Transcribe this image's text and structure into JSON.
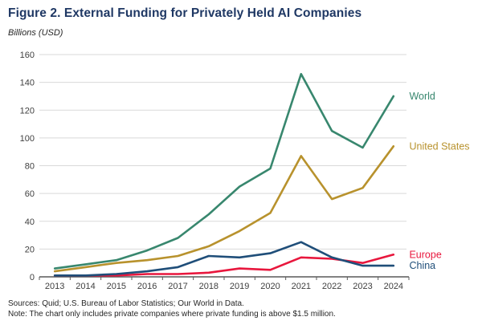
{
  "header": {
    "title": "Figure 2. External Funding for Privately Held AI Companies",
    "subtitle": "Billions (USD)"
  },
  "chart_data": {
    "type": "line",
    "title": "Figure 2. External Funding for Privately Held AI Companies",
    "subtitle": "Billions (USD)",
    "xlabel": "",
    "ylabel": "Billions (USD)",
    "categories": [
      "2013",
      "2014",
      "2015",
      "2016",
      "2017",
      "2018",
      "2019",
      "2020",
      "2021",
      "2022",
      "2023",
      "2024"
    ],
    "series": [
      {
        "name": "World",
        "color": "#38876e",
        "values": [
          6,
          9,
          12,
          19,
          28,
          45,
          65,
          78,
          146,
          105,
          93,
          130
        ]
      },
      {
        "name": "United States",
        "color": "#b8922d",
        "values": [
          4,
          7,
          10,
          12,
          15,
          22,
          33,
          46,
          87,
          56,
          64,
          94
        ]
      },
      {
        "name": "Europe",
        "color": "#e8173d",
        "values": [
          1,
          1,
          1,
          2,
          2,
          3,
          6,
          5,
          14,
          13,
          10,
          16
        ]
      },
      {
        "name": "China",
        "color": "#1f4e79",
        "values": [
          1,
          1,
          2,
          4,
          7,
          15,
          14,
          17,
          25,
          14,
          8,
          8
        ]
      }
    ],
    "ylim": [
      0,
      160
    ],
    "yticks": [
      0,
      20,
      40,
      60,
      80,
      100,
      120,
      140,
      160
    ],
    "grid": true,
    "legend_position": "right-end-labels",
    "colors": {
      "gridline": "#d9d9d9",
      "axis": "#595959",
      "tick_label": "#404040",
      "title": "#1f3864"
    }
  },
  "footer": {
    "sources": "Sources: Quid; U.S. Bureau of Labor Statistics; Our World in Data.",
    "note": "Note: The chart only includes private companies where private funding is above $1.5 million."
  }
}
